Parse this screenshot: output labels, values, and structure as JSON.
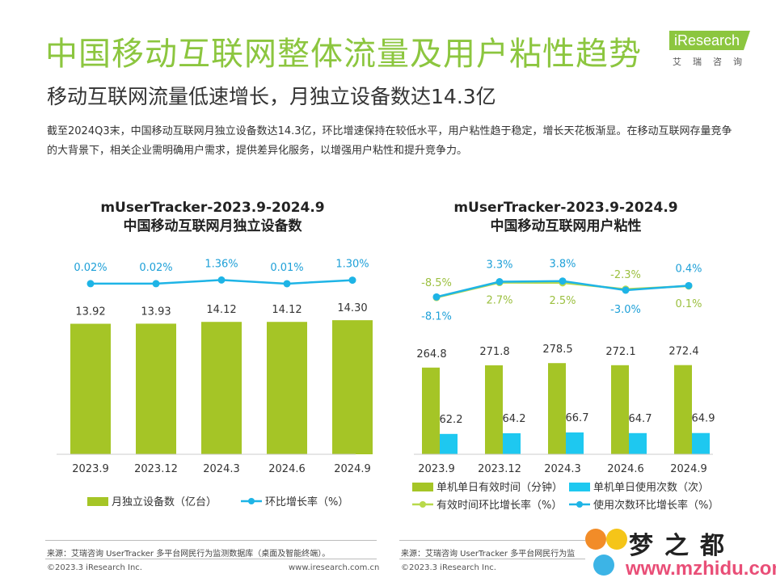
{
  "page": {
    "title": "中国移动互联网整体流量及用户粘性趋势",
    "subtitle": "移动互联网流量低速增长，月独立设备数达14.3亿",
    "description": "截至2024Q3末，中国移动互联网月独立设备数达14.3亿，环比增速保持在较低水平，用户粘性趋于稳定，增长天花板渐显。在移动互联网存量竞争的大背景下，相关企业需明确用户需求，提供差异化服务，以增强用户粘性和提升竞争力。"
  },
  "logo": {
    "name": "iResearch",
    "sub": "艾瑞咨询",
    "color": "#8cc63f"
  },
  "colors": {
    "bar_green": "#a5c526",
    "line_blue": "#1eb4e6",
    "bar_blue": "#1ec8f0",
    "line_green": "#b8d94a"
  },
  "chart_data": [
    {
      "type": "bar",
      "title": "mUserTracker-2023.9-2024.9",
      "subtitle": "中国移动互联网月独立设备数",
      "categories": [
        "2023.9",
        "2023.12",
        "2024.3",
        "2024.6",
        "2024.9"
      ],
      "series": [
        {
          "name": "月独立设备数（亿台）",
          "kind": "bar",
          "color": "#a5c526",
          "values": [
            13.92,
            13.93,
            14.12,
            14.12,
            14.3
          ],
          "labels": [
            "13.92",
            "13.93",
            "14.12",
            "14.12",
            "14.30"
          ]
        },
        {
          "name": "环比增长率（%）",
          "kind": "line",
          "color": "#1eb4e6",
          "values": [
            0.02,
            0.02,
            1.36,
            0.01,
            1.3
          ],
          "labels": [
            "0.02%",
            "0.02%",
            "1.36%",
            "0.01%",
            "1.30%"
          ]
        }
      ],
      "legend": "bottom",
      "grid": false
    },
    {
      "type": "bar",
      "title": "mUserTracker-2023.9-2024.9",
      "subtitle": "中国移动互联网用户粘性",
      "categories": [
        "2023.9",
        "2023.12",
        "2024.3",
        "2024.6",
        "2024.9"
      ],
      "series": [
        {
          "name": "单机单日有效时间（分钟）",
          "kind": "bar",
          "color": "#a5c526",
          "values": [
            264.8,
            271.8,
            278.5,
            272.1,
            272.4
          ],
          "labels": [
            "264.8",
            "271.8",
            "278.5",
            "272.1",
            "272.4"
          ]
        },
        {
          "name": "单机单日使用次数（次）",
          "kind": "bar",
          "color": "#1ec8f0",
          "values": [
            62.2,
            64.2,
            66.7,
            64.7,
            64.9
          ],
          "labels": [
            "62.2",
            "64.2",
            "66.7",
            "64.7",
            "64.9"
          ]
        },
        {
          "name": "有效时间环比增长率（%）",
          "kind": "line",
          "color": "#b8d94a",
          "values": [
            -8.5,
            2.7,
            2.5,
            -2.3,
            0.1
          ],
          "labels": [
            "-8.5%",
            "2.7%",
            "2.5%",
            "-2.3%",
            "0.1%"
          ]
        },
        {
          "name": "使用次数环比增长率（%）",
          "kind": "line",
          "color": "#1eb4e6",
          "values": [
            -8.1,
            3.3,
            3.8,
            -3.0,
            0.4
          ],
          "labels": [
            "-8.1%",
            "3.3%",
            "3.8%",
            "-3.0%",
            "0.4%"
          ]
        }
      ],
      "legend": "bottom",
      "grid": false
    }
  ],
  "footer": {
    "source_left": "来源：艾瑞咨询 UserTracker 多平台网民行为监测数据库（桌面及智能终端）。",
    "source_right": "来源：艾瑞咨询 UserTracker 多平台网民行为监",
    "copyright": "©2023.3 iResearch Inc.",
    "site": "www.iresearch.com.cn"
  },
  "watermark": {
    "text": "梦之都",
    "url": "www.mzhidu.com"
  }
}
